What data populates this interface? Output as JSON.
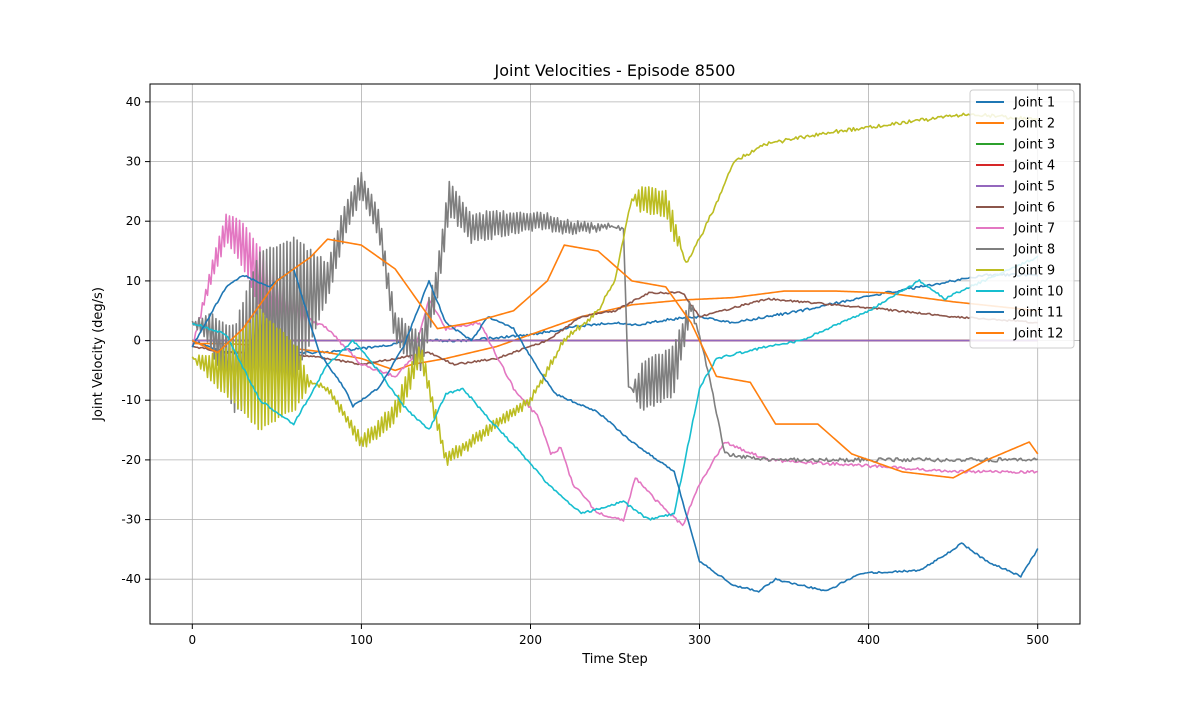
{
  "chart_data": {
    "type": "line",
    "title": "Joint Velocities - Episode 8500",
    "xlabel": "Time Step",
    "ylabel": "Joint Velocity (deg/s)",
    "xlim": [
      -25,
      525
    ],
    "ylim": [
      -47.5,
      43
    ],
    "xticks": [
      0,
      100,
      200,
      300,
      400,
      500
    ],
    "yticks": [
      -40,
      -30,
      -20,
      -10,
      0,
      10,
      20,
      30,
      40
    ],
    "grid": true,
    "legend_position": "top-right",
    "series": [
      {
        "name": "Joint 1",
        "color": "#1f77b4",
        "noise": 0.2,
        "points": [
          [
            0,
            0
          ],
          [
            20,
            -2
          ],
          [
            50,
            -2
          ],
          [
            80,
            -2
          ],
          [
            110,
            -1
          ],
          [
            130,
            0
          ],
          [
            160,
            0
          ],
          [
            200,
            1
          ],
          [
            230,
            2.5
          ],
          [
            250,
            3
          ],
          [
            260,
            2.5
          ],
          [
            280,
            3.5
          ],
          [
            300,
            4
          ],
          [
            320,
            3
          ],
          [
            360,
            5
          ],
          [
            400,
            7.5
          ],
          [
            440,
            9.5
          ],
          [
            470,
            11
          ],
          [
            500,
            11
          ]
        ]
      },
      {
        "name": "Joint 2",
        "color": "#ff7f0e",
        "noise": 0,
        "points": [
          [
            0,
            -0.5
          ],
          [
            20,
            -0.5
          ],
          [
            50,
            -1
          ],
          [
            80,
            -2
          ],
          [
            100,
            -3
          ],
          [
            110,
            -4
          ],
          [
            120,
            -5
          ],
          [
            130,
            -4
          ],
          [
            150,
            -3
          ],
          [
            180,
            -1
          ],
          [
            210,
            2
          ],
          [
            230,
            4
          ],
          [
            260,
            6
          ],
          [
            290,
            6.8
          ],
          [
            320,
            7.2
          ],
          [
            350,
            8.3
          ],
          [
            380,
            8.3
          ],
          [
            410,
            8
          ],
          [
            450,
            6.5
          ],
          [
            500,
            5
          ]
        ]
      },
      {
        "name": "Joint 3",
        "color": "#2ca02c",
        "noise": 0,
        "points": [
          [
            0,
            0
          ],
          [
            500,
            0
          ]
        ]
      },
      {
        "name": "Joint 4",
        "color": "#d62728",
        "noise": 0,
        "points": [
          [
            0,
            0
          ],
          [
            500,
            0
          ]
        ]
      },
      {
        "name": "Joint 5",
        "color": "#9467bd",
        "noise": 0,
        "points": [
          [
            0,
            0
          ],
          [
            500,
            0
          ]
        ]
      },
      {
        "name": "Joint 6",
        "color": "#8c564b",
        "noise": 0.15,
        "points": [
          [
            0,
            -1
          ],
          [
            20,
            -2
          ],
          [
            50,
            -2
          ],
          [
            80,
            -3
          ],
          [
            100,
            -4
          ],
          [
            120,
            -3
          ],
          [
            140,
            -2
          ],
          [
            155,
            -4
          ],
          [
            180,
            -3
          ],
          [
            210,
            0
          ],
          [
            230,
            4
          ],
          [
            250,
            5
          ],
          [
            270,
            8
          ],
          [
            290,
            8
          ],
          [
            300,
            4
          ],
          [
            320,
            5.5
          ],
          [
            340,
            7
          ],
          [
            360,
            6.5
          ],
          [
            400,
            5.5
          ],
          [
            450,
            4
          ],
          [
            500,
            3
          ]
        ]
      },
      {
        "name": "Joint 7",
        "color": "#e377c2",
        "noise": 0.25,
        "amp": [
          [
            0,
            0
          ],
          [
            25,
            3
          ],
          [
            40,
            5
          ],
          [
            60,
            4
          ],
          [
            70,
            0
          ]
        ],
        "points": [
          [
            0,
            -1
          ],
          [
            10,
            10
          ],
          [
            20,
            19
          ],
          [
            30,
            16
          ],
          [
            45,
            8
          ],
          [
            60,
            5
          ],
          [
            80,
            2
          ],
          [
            100,
            -4
          ],
          [
            120,
            -6
          ],
          [
            130,
            -3
          ],
          [
            140,
            7
          ],
          [
            150,
            2
          ],
          [
            170,
            3
          ],
          [
            190,
            -8
          ],
          [
            205,
            -13
          ],
          [
            212,
            -19
          ],
          [
            218,
            -18
          ],
          [
            225,
            -24
          ],
          [
            240,
            -29
          ],
          [
            255,
            -30
          ],
          [
            262,
            -23
          ],
          [
            275,
            -27
          ],
          [
            290,
            -31
          ],
          [
            300,
            -24
          ],
          [
            315,
            -17
          ],
          [
            340,
            -20
          ],
          [
            400,
            -21
          ],
          [
            450,
            -22
          ],
          [
            500,
            -22
          ]
        ]
      },
      {
        "name": "Joint 8",
        "color": "#7f7f7f",
        "noise": 0.35,
        "amp": [
          [
            0,
            0
          ],
          [
            15,
            4
          ],
          [
            40,
            12
          ],
          [
            60,
            12
          ],
          [
            80,
            3
          ],
          [
            100,
            2
          ],
          [
            140,
            3
          ],
          [
            260,
            0
          ],
          [
            266,
            4
          ],
          [
            285,
            4
          ],
          [
            292,
            2
          ],
          [
            300,
            0
          ]
        ],
        "points": [
          [
            0,
            3
          ],
          [
            10,
            2
          ],
          [
            25,
            -5
          ],
          [
            40,
            3
          ],
          [
            60,
            5
          ],
          [
            80,
            10
          ],
          [
            90,
            20
          ],
          [
            100,
            26
          ],
          [
            110,
            20
          ],
          [
            120,
            2
          ],
          [
            135,
            -2
          ],
          [
            145,
            10
          ],
          [
            152,
            24
          ],
          [
            165,
            19
          ],
          [
            200,
            20
          ],
          [
            210,
            20
          ],
          [
            220,
            19
          ],
          [
            245,
            19
          ],
          [
            255,
            19
          ],
          [
            258,
            -8
          ],
          [
            265,
            -8
          ],
          [
            285,
            -5
          ],
          [
            295,
            6
          ],
          [
            305,
            -5
          ],
          [
            315,
            -19
          ],
          [
            340,
            -20
          ],
          [
            400,
            -20
          ],
          [
            450,
            -20
          ],
          [
            500,
            -20
          ]
        ]
      },
      {
        "name": "Joint 9",
        "color": "#bcbd22",
        "noise": 0.3,
        "amp": [
          [
            0,
            0
          ],
          [
            20,
            4
          ],
          [
            40,
            10
          ],
          [
            62,
            5
          ],
          [
            70,
            0
          ],
          [
            130,
            2
          ],
          [
            145,
            1
          ],
          [
            260,
            0
          ],
          [
            265,
            2
          ],
          [
            285,
            2
          ],
          [
            290,
            0
          ]
        ],
        "points": [
          [
            0,
            -3
          ],
          [
            15,
            -5
          ],
          [
            40,
            -5
          ],
          [
            60,
            -6
          ],
          [
            80,
            -8
          ],
          [
            100,
            -17
          ],
          [
            110,
            -15
          ],
          [
            120,
            -12
          ],
          [
            135,
            -2
          ],
          [
            150,
            -20
          ],
          [
            170,
            -16
          ],
          [
            200,
            -10
          ],
          [
            220,
            0
          ],
          [
            240,
            5
          ],
          [
            250,
            10
          ],
          [
            260,
            24
          ],
          [
            280,
            23
          ],
          [
            292,
            13
          ],
          [
            300,
            17
          ],
          [
            310,
            23
          ],
          [
            320,
            30
          ],
          [
            340,
            33
          ],
          [
            380,
            35
          ],
          [
            420,
            36.5
          ],
          [
            460,
            38
          ],
          [
            500,
            37
          ]
        ]
      },
      {
        "name": "Joint 10",
        "color": "#17becf",
        "noise": 0.2,
        "points": [
          [
            0,
            3
          ],
          [
            20,
            1
          ],
          [
            40,
            -10
          ],
          [
            60,
            -14
          ],
          [
            80,
            -4
          ],
          [
            95,
            0
          ],
          [
            110,
            -5
          ],
          [
            125,
            -11
          ],
          [
            140,
            -15
          ],
          [
            150,
            -9
          ],
          [
            160,
            -8
          ],
          [
            175,
            -13
          ],
          [
            195,
            -19
          ],
          [
            210,
            -24
          ],
          [
            230,
            -29
          ],
          [
            255,
            -27
          ],
          [
            270,
            -30
          ],
          [
            285,
            -29
          ],
          [
            300,
            -8
          ],
          [
            310,
            -3
          ],
          [
            340,
            -1
          ],
          [
            360,
            0
          ],
          [
            400,
            5
          ],
          [
            430,
            10
          ],
          [
            445,
            7
          ],
          [
            460,
            9
          ],
          [
            500,
            14
          ]
        ]
      },
      {
        "name": "Joint 11",
        "color": "#1f77b4",
        "noise": 0.15,
        "points": [
          [
            0,
            -1
          ],
          [
            20,
            9
          ],
          [
            30,
            11
          ],
          [
            45,
            9
          ],
          [
            60,
            12
          ],
          [
            75,
            -2
          ],
          [
            90,
            -8
          ],
          [
            95,
            -11
          ],
          [
            110,
            -8
          ],
          [
            125,
            -1
          ],
          [
            140,
            10
          ],
          [
            150,
            3
          ],
          [
            165,
            0
          ],
          [
            175,
            4
          ],
          [
            190,
            2
          ],
          [
            205,
            -5
          ],
          [
            215,
            -9
          ],
          [
            240,
            -12
          ],
          [
            260,
            -17
          ],
          [
            285,
            -22
          ],
          [
            300,
            -37
          ],
          [
            320,
            -41
          ],
          [
            335,
            -42
          ],
          [
            345,
            -40
          ],
          [
            360,
            -41
          ],
          [
            375,
            -42
          ],
          [
            395,
            -39
          ],
          [
            430,
            -38.5
          ],
          [
            445,
            -36
          ],
          [
            455,
            -34
          ],
          [
            470,
            -37
          ],
          [
            490,
            -39.5
          ],
          [
            500,
            -35
          ]
        ]
      },
      {
        "name": "Joint 12",
        "color": "#ff7f0e",
        "noise": 0,
        "points": [
          [
            0,
            0
          ],
          [
            15,
            -2
          ],
          [
            30,
            2
          ],
          [
            50,
            10
          ],
          [
            70,
            14
          ],
          [
            80,
            17
          ],
          [
            100,
            16
          ],
          [
            120,
            12
          ],
          [
            130,
            8
          ],
          [
            145,
            2
          ],
          [
            165,
            3
          ],
          [
            190,
            5
          ],
          [
            210,
            10
          ],
          [
            220,
            16
          ],
          [
            240,
            15
          ],
          [
            260,
            10
          ],
          [
            280,
            9
          ],
          [
            295,
            3
          ],
          [
            310,
            -6
          ],
          [
            330,
            -7
          ],
          [
            345,
            -14
          ],
          [
            370,
            -14
          ],
          [
            390,
            -19
          ],
          [
            420,
            -22
          ],
          [
            450,
            -23
          ],
          [
            470,
            -20
          ],
          [
            495,
            -17
          ],
          [
            500,
            -19
          ]
        ]
      }
    ]
  }
}
